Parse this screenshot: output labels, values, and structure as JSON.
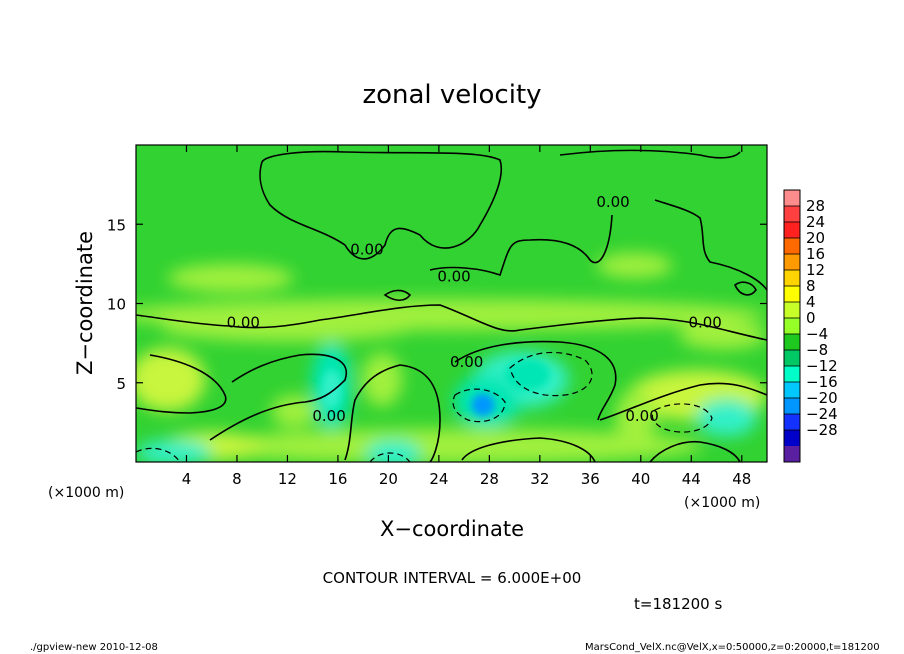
{
  "chart_data": {
    "type": "contour",
    "title": "zonal velocity",
    "xlabel": "X−coordinate",
    "ylabel": "Z−coordinate",
    "x_unit_left": "(×1000 m)",
    "x_unit_right": "(×1000 m)",
    "xlim": [
      0,
      50
    ],
    "ylim": [
      0,
      20
    ],
    "x_ticks": [
      4,
      8,
      12,
      16,
      20,
      24,
      28,
      32,
      36,
      40,
      44,
      48
    ],
    "x_tick_labels": [
      "4",
      "8",
      "12",
      "16",
      "20",
      "24",
      "28",
      "32",
      "36",
      "40",
      "44",
      "48"
    ],
    "y_ticks": [
      5,
      10,
      15
    ],
    "y_tick_labels": [
      "5",
      "10",
      "15"
    ],
    "contour_labels": [
      {
        "text": "0.00",
        "x": 37.8,
        "z": 16.1
      },
      {
        "text": "0.00",
        "x": 18.3,
        "z": 13.1
      },
      {
        "text": "0.00",
        "x": 25.2,
        "z": 11.4
      },
      {
        "text": "0.00",
        "x": 8.5,
        "z": 8.5
      },
      {
        "text": "0.00",
        "x": 45.1,
        "z": 8.5
      },
      {
        "text": "0.00",
        "x": 26.2,
        "z": 6.0
      },
      {
        "text": "0.00",
        "x": 15.3,
        "z": 2.6
      },
      {
        "text": "0.00",
        "x": 40.1,
        "z": 2.6
      }
    ],
    "colorbar": {
      "levels": [
        28,
        24,
        20,
        16,
        12,
        8,
        4,
        0,
        -4,
        -8,
        -12,
        -16,
        -20,
        -24,
        -28
      ],
      "labels": [
        "28",
        "24",
        "20",
        "16",
        "12",
        "8",
        "4",
        "0",
        "−4",
        "−8",
        "−12",
        "−16",
        "−20",
        "−24",
        "−28"
      ],
      "colors": [
        "#ff8c8c",
        "#ff4040",
        "#ff2020",
        "#ff6a00",
        "#ff9a00",
        "#ffd400",
        "#ffff00",
        "#c8ff28",
        "#96ff28",
        "#1ec81e",
        "#00c864",
        "#00ffc8",
        "#00c8ff",
        "#0096ff",
        "#1432ff",
        "#0000c8",
        "#5a1ea0"
      ]
    },
    "field_colors": {
      "background": "#32d232",
      "light_green": "#a0f03c",
      "yellow_green": "#c8f53c",
      "cyan": "#00e6b4",
      "light_cyan": "#32f0c8",
      "blue": "#0096ff"
    },
    "contour_interval_text": "CONTOUR INTERVAL = 6.000E+00",
    "time_text": "t=181200 s",
    "footer_left": "./gpview-new 2010-12-08",
    "footer_right": "MarsCond_VelX.nc@VelX,x=0:50000,z=0:20000,t=181200"
  }
}
